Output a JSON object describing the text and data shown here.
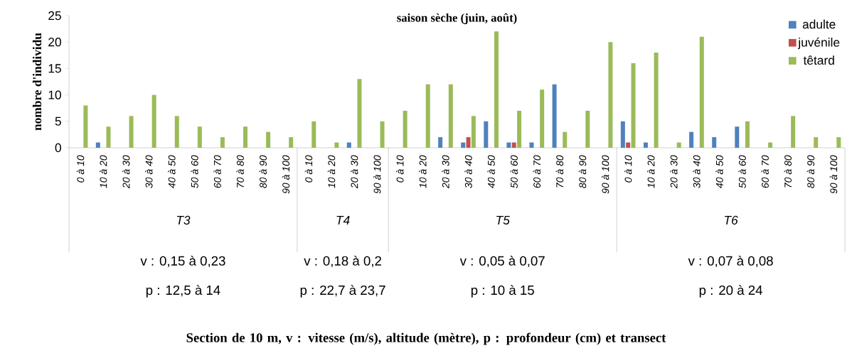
{
  "chart_data": {
    "type": "bar",
    "title": "saison sèche (juin, août)",
    "ylabel": "nombre d'individu",
    "categories": [
      "0 à 10",
      "10 à 20",
      "20 à 30",
      "30 à 40",
      "40 à 50",
      "50 à 60",
      "60 à 70",
      "70 à 80",
      "80 à 90",
      "90 à 100",
      "0 à 10",
      "10 à 20",
      "20 à 30",
      "90 à 100",
      "0 à 10",
      "10 à 20",
      "20 à 30",
      "30 à 40",
      "40 à 50",
      "50 à 60",
      "60 à 70",
      "70 à 80",
      "80 à 90",
      "90 à 100",
      "0 à 10",
      "10 à 20",
      "20 à 30",
      "30 à 40",
      "40 à 50",
      "50 à 60",
      "60 à 70",
      "70 à 80",
      "80 à 90",
      "90 à 100"
    ],
    "series": [
      {
        "name": "adulte",
        "color": "#4f81bd",
        "values": [
          0,
          1,
          0,
          0,
          0,
          0,
          0,
          0,
          0,
          0,
          0,
          0,
          1,
          0,
          0,
          0,
          2,
          1,
          5,
          1,
          1,
          12,
          0,
          0,
          5,
          1,
          0,
          3,
          2,
          4,
          0,
          0,
          0,
          0
        ]
      },
      {
        "name": "juvénile",
        "color": "#c0504d",
        "values": [
          0,
          0,
          0,
          0,
          0,
          0,
          0,
          0,
          0,
          0,
          0,
          0,
          0,
          0,
          0,
          0,
          0,
          2,
          0,
          1,
          0,
          0,
          0,
          0,
          1,
          0,
          0,
          0,
          0,
          0,
          0,
          0,
          0,
          0
        ]
      },
      {
        "name": "têtard",
        "color": "#9bbb59",
        "values": [
          8,
          4,
          6,
          10,
          6,
          4,
          2,
          4,
          3,
          2,
          5,
          1,
          13,
          5,
          7,
          12,
          12,
          6,
          22,
          7,
          11,
          3,
          7,
          20,
          16,
          18,
          1,
          21,
          0,
          5,
          1,
          6,
          2,
          2
        ]
      }
    ],
    "ylim": [
      0,
      25
    ],
    "yticks": [
      0,
      5,
      10,
      15,
      20,
      25
    ],
    "legend": "top right",
    "annotations": [
      "T3",
      "T4",
      "T5",
      "T6",
      "v : 0,15 à 0,23",
      "p : 12,5 à 14",
      "v : 0,18 à 0,2",
      "p : 22,7 à 23,7",
      "v : 0,05 à 0,07",
      "p : 10 à 15",
      "v : 0,07 à 0,08",
      "p : 20 à 24",
      "Section de 10 m,  v : vitesse (m/s), altitude (mètre), p : profondeur (cm) et transect"
    ]
  }
}
